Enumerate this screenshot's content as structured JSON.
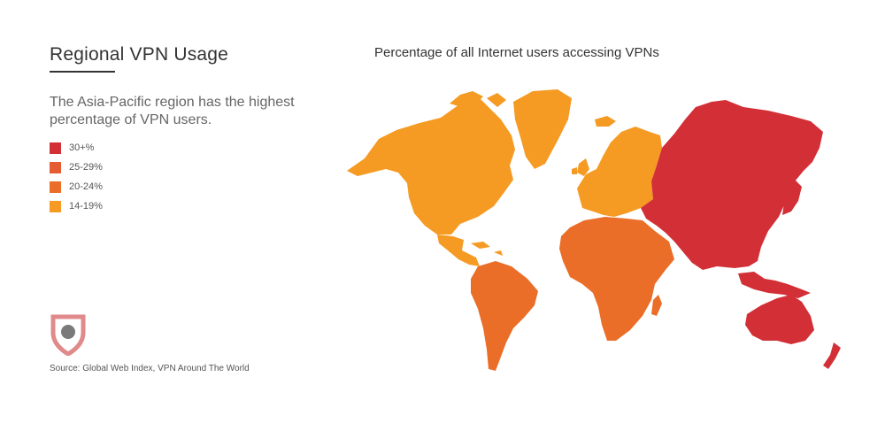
{
  "header": {
    "title": "Regional VPN Usage",
    "subtitle": "The Asia-Pacific region has the highest percentage of VPN users."
  },
  "legend": [
    {
      "label": "30+%",
      "color": "#d32f36"
    },
    {
      "label": "25-29%",
      "color": "#e65c32"
    },
    {
      "label": "20-24%",
      "color": "#ea6d28"
    },
    {
      "label": "14-19%",
      "color": "#f59a22"
    }
  ],
  "map": {
    "title": "Percentage of all Internet users accessing VPNs",
    "regions": [
      {
        "name": "North America",
        "bucket": "14-19%",
        "color": "#f59a22"
      },
      {
        "name": "Greenland",
        "bucket": "14-19%",
        "color": "#f59a22"
      },
      {
        "name": "Central America",
        "bucket": "14-19%",
        "color": "#f59a22"
      },
      {
        "name": "South America",
        "bucket": "20-24%",
        "color": "#ea6d28"
      },
      {
        "name": "Europe",
        "bucket": "14-19%",
        "color": "#f59a22"
      },
      {
        "name": "Middle East & Africa",
        "bucket": "20-24%",
        "color": "#ea6d28"
      },
      {
        "name": "Asia-Pacific",
        "bucket": "30+%",
        "color": "#d32f36"
      }
    ]
  },
  "logo": {
    "icon": "shield-icon",
    "color": "#e08a8c",
    "dot_color": "#7a7a7a"
  },
  "footer": {
    "source": "Source: Global Web Index, VPN Around The World"
  }
}
